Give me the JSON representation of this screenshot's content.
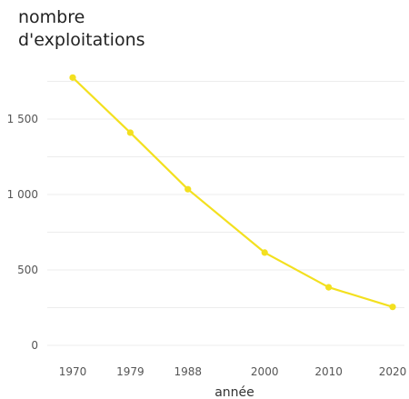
{
  "chart_data": {
    "type": "line",
    "ylabel_lines": [
      "nombre",
      "d'exploitations"
    ],
    "xlabel": "année",
    "x": [
      "1970",
      "1979",
      "1988",
      "2000",
      "2010",
      "2020"
    ],
    "x_numeric": [
      1970,
      1979,
      1988,
      2000,
      2010,
      2020
    ],
    "series": [
      {
        "values": [
          1775,
          1410,
          1035,
          615,
          385,
          255
        ]
      }
    ],
    "yticks": [
      0,
      500,
      1000,
      1500
    ],
    "ytick_labels": [
      "0",
      "500",
      "1 000",
      "1 500"
    ],
    "ylim": [
      0,
      1850
    ],
    "grid": true,
    "colors": {
      "line": "#f3e01f",
      "grid": "#ececec",
      "text": "#555555"
    }
  }
}
